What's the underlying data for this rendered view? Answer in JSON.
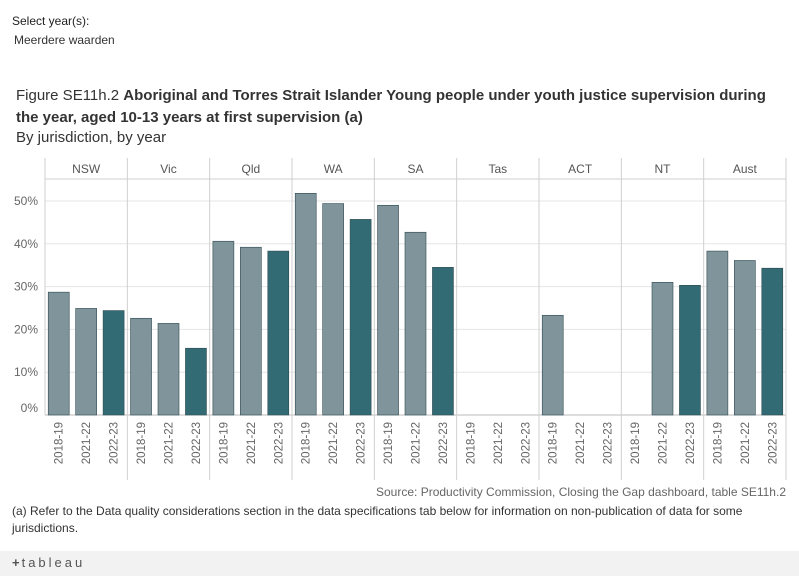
{
  "filter": {
    "label": "Select year(s):",
    "value": "Meerdere waarden"
  },
  "title": {
    "prefix": "Figure SE11h.2 ",
    "main": "Aboriginal and Torres Strait Islander Young people under youth justice supervision during the year, aged 10-13 years at first supervision (a)",
    "subtitle": "By jurisdiction, by year"
  },
  "source": "Source: Productivity Commission, Closing the Gap dashboard, table SE11h.2",
  "footnote": "(a) Refer to the Data quality considerations section in the data specifications tab below for information on non-publication of data for some jurisdictions.",
  "tableau": {
    "plus": "+",
    "name": "tableau"
  },
  "colors": {
    "light": "#7f949b",
    "dark": "#336b74",
    "border": "#2e4a50",
    "grid": "#e6e6e6",
    "divider": "#cfcfcf",
    "axis_text": "#666666"
  },
  "chart_data": {
    "type": "bar",
    "title": "Aboriginal and Torres Strait Islander Young people under youth justice supervision during the year, aged 10-13 years at first supervision (a)",
    "ylabel": "",
    "ylim": [
      0,
      55
    ],
    "yticks": [
      0,
      10,
      20,
      30,
      40,
      50
    ],
    "ytick_labels": [
      "0%",
      "10%",
      "20%",
      "30%",
      "40%",
      "50%"
    ],
    "years": [
      "2018-19",
      "2021-22",
      "2022-23"
    ],
    "panels": [
      {
        "name": "NSW",
        "values": [
          28.7,
          24.9,
          24.4
        ]
      },
      {
        "name": "Vic",
        "values": [
          22.6,
          21.4,
          15.6
        ]
      },
      {
        "name": "Qld",
        "values": [
          40.6,
          39.2,
          38.3
        ]
      },
      {
        "name": "WA",
        "values": [
          51.8,
          49.4,
          45.7
        ]
      },
      {
        "name": "SA",
        "values": [
          49.0,
          42.7,
          34.5
        ]
      },
      {
        "name": "Tas",
        "values": [
          null,
          null,
          null
        ]
      },
      {
        "name": "ACT",
        "values": [
          23.3,
          null,
          null
        ]
      },
      {
        "name": "NT",
        "values": [
          null,
          31.0,
          30.3
        ]
      },
      {
        "name": "Aust",
        "values": [
          38.3,
          36.1,
          34.3
        ]
      }
    ]
  }
}
